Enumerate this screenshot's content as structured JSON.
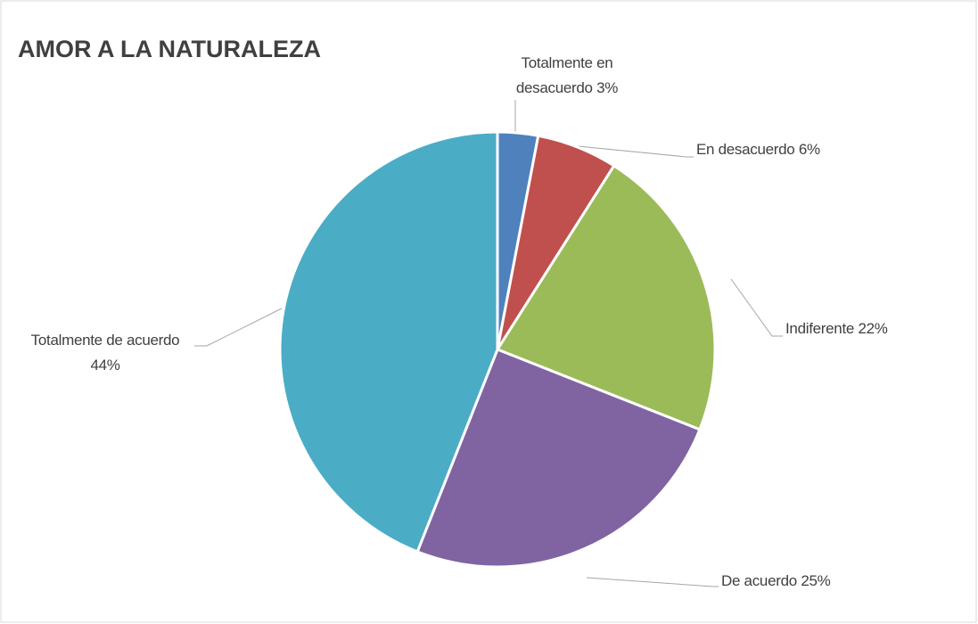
{
  "chart_data": {
    "type": "pie",
    "title": "AMOR A LA NATURALEZA",
    "categories": [
      "Totalmente en desacuerdo",
      "En desacuerdo",
      "Indiferente",
      "De acuerdo",
      "Totalmente de acuerdo"
    ],
    "values": [
      3,
      6,
      22,
      25,
      44
    ],
    "value_labels": [
      "3%",
      "6%",
      "22%",
      "25%",
      "44%"
    ],
    "colors": [
      "#4f81bd",
      "#c0504d",
      "#9bbb59",
      "#8064a2",
      "#4bacc6"
    ]
  }
}
